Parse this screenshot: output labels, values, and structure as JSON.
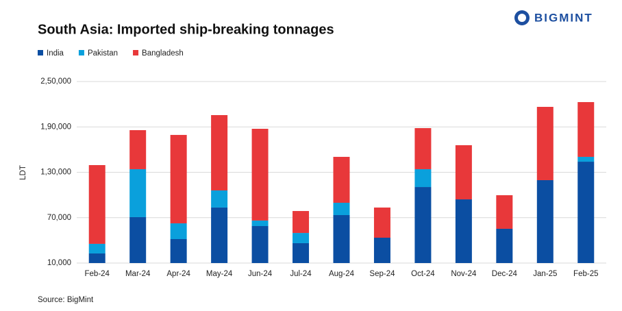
{
  "logo": "BIGMINT",
  "chart_data": {
    "type": "stacked_bar",
    "title": "South Asia: Imported ship-breaking tonnages",
    "y_label": "LDT",
    "source": "Source: BigMint",
    "categories": [
      "Feb-24",
      "Mar-24",
      "Apr-24",
      "May-24",
      "Jun-24",
      "Jul-24",
      "Aug-24",
      "Sep-24",
      "Oct-24",
      "Nov-24",
      "Dec-24",
      "Jan-25",
      "Feb-25"
    ],
    "series": [
      {
        "name": "India",
        "color": "#0b4ea2",
        "values": [
          22700,
          70700,
          41700,
          83400,
          58900,
          36300,
          73400,
          43500,
          110500,
          94200,
          55300,
          119600,
          144000
        ]
      },
      {
        "name": "Pakistan",
        "color": "#0aa0dc",
        "values": [
          12700,
          63400,
          20800,
          22600,
          7300,
          13500,
          16300,
          0,
          23600,
          0,
          0,
          0,
          6400
        ]
      },
      {
        "name": "Bangladesh",
        "color": "#e8383a",
        "values": [
          104100,
          51600,
          116900,
          99600,
          121300,
          29000,
          60700,
          39900,
          54300,
          71600,
          44400,
          96900,
          72400
        ]
      }
    ],
    "ylim": [
      10000,
      250000
    ],
    "yticks": [
      {
        "value": 10000,
        "label": "10,000"
      },
      {
        "value": 70000,
        "label": "70,000"
      },
      {
        "value": 130000,
        "label": "1,30,000"
      },
      {
        "value": 190000,
        "label": "1,90,000"
      },
      {
        "value": 250000,
        "label": "2,50,000"
      }
    ],
    "grid": true
  }
}
